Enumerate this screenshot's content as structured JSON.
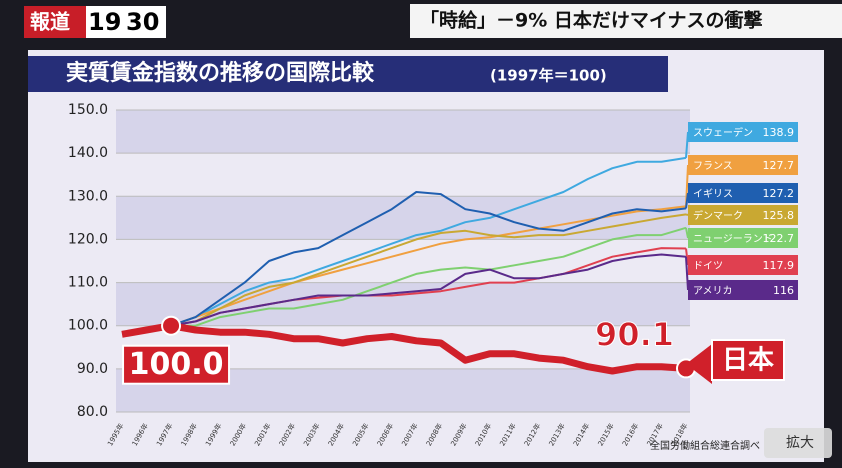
{
  "header": {
    "logo": [
      "報道",
      "19",
      "30"
    ],
    "headline": "「時給」－9% 日本だけマイナスの衝撃",
    "button": "拡大"
  },
  "chart_data": {
    "type": "line",
    "title": "実質賃金指数の推移の国際比較",
    "subtitle": "(1997年＝100)",
    "source": "全国労働組合総連合調べ",
    "categories": [
      "1995年",
      "1996年",
      "1997年",
      "1998年",
      "1999年",
      "2000年",
      "2001年",
      "2002年",
      "2003年",
      "2004年",
      "2005年",
      "2006年",
      "2007年",
      "2008年",
      "2009年",
      "2010年",
      "2011年",
      "2012年",
      "2013年",
      "2014年",
      "2015年",
      "2016年",
      "2017年",
      "2018年"
    ],
    "ylim": [
      80,
      150
    ],
    "yticks": [
      {
        "value": 80,
        "label": "80.0"
      },
      {
        "value": 90,
        "label": "90.0"
      },
      {
        "value": 100,
        "label": "100.0"
      },
      {
        "value": 110,
        "label": "110.0"
      },
      {
        "value": 120,
        "label": "120.0"
      },
      {
        "value": 130,
        "label": "130.0"
      },
      {
        "value": 140,
        "label": "140.0"
      },
      {
        "value": 150,
        "label": "150.0"
      }
    ],
    "grid": true,
    "series": [
      {
        "name": "スウェーデン",
        "color": "#3fa9e0",
        "values": [
          null,
          null,
          100,
          102,
          105,
          108,
          110,
          111,
          113,
          115,
          117,
          119,
          121,
          122,
          124,
          125,
          127,
          129,
          131,
          134,
          136.5,
          138,
          138,
          138.9
        ]
      },
      {
        "name": "フランス",
        "color": "#f0a040",
        "values": [
          null,
          null,
          100,
          102,
          104,
          106,
          108,
          110,
          111.5,
          113,
          114.5,
          116,
          117.5,
          119,
          120,
          120.5,
          121.5,
          122.5,
          123.5,
          124.5,
          125.5,
          126.5,
          127,
          127.7
        ]
      },
      {
        "name": "イギリス",
        "color": "#1f5fb0",
        "values": [
          null,
          null,
          100,
          102,
          106,
          110,
          115,
          117,
          118,
          121,
          124,
          127,
          131,
          130.5,
          127,
          126,
          124,
          122.5,
          122,
          124,
          126,
          127,
          126.5,
          127.2
        ]
      },
      {
        "name": "デンマーク",
        "color": "#c9a832",
        "values": [
          null,
          null,
          100,
          101,
          104,
          107,
          109,
          110,
          112,
          114,
          116,
          118,
          120,
          121.5,
          122,
          121,
          120.5,
          121,
          121,
          122,
          123,
          124,
          125,
          125.8
        ]
      },
      {
        "name": "ニュージーランド",
        "color": "#7fd070",
        "values": [
          null,
          null,
          100,
          100,
          102,
          103,
          104,
          104,
          105,
          106,
          108,
          110,
          112,
          113,
          113.5,
          113,
          114,
          115,
          116,
          118,
          120,
          121,
          121,
          122.7
        ]
      },
      {
        "name": "ドイツ",
        "color": "#e04050",
        "values": [
          null,
          null,
          100,
          101,
          103,
          104,
          105,
          106,
          106.5,
          107,
          107,
          107,
          107.5,
          108,
          109,
          110,
          110,
          111,
          112,
          114,
          116,
          117,
          118,
          117.9
        ]
      },
      {
        "name": "アメリカ",
        "color": "#5a2a8a",
        "values": [
          null,
          null,
          100,
          101,
          103,
          104,
          105,
          106,
          107,
          107,
          107,
          107.5,
          108,
          108.5,
          112,
          113,
          111,
          111,
          112,
          113,
          115,
          116,
          116.5,
          116.0
        ]
      },
      {
        "name": "日本",
        "color": "#d0202a",
        "values": [
          98,
          99,
          100,
          99,
          98.5,
          98.5,
          98,
          97,
          97,
          96,
          97,
          97.5,
          96.5,
          96,
          92,
          93.5,
          93.5,
          92.5,
          92,
          90.5,
          89.5,
          90.5,
          90.5,
          90.1
        ],
        "value_labels": [
          null,
          null,
          "100.0",
          null,
          null,
          null,
          null,
          null,
          null,
          null,
          null,
          null,
          null,
          null,
          null,
          null,
          null,
          null,
          null,
          null,
          null,
          null,
          null,
          "90.1"
        ]
      }
    ]
  }
}
